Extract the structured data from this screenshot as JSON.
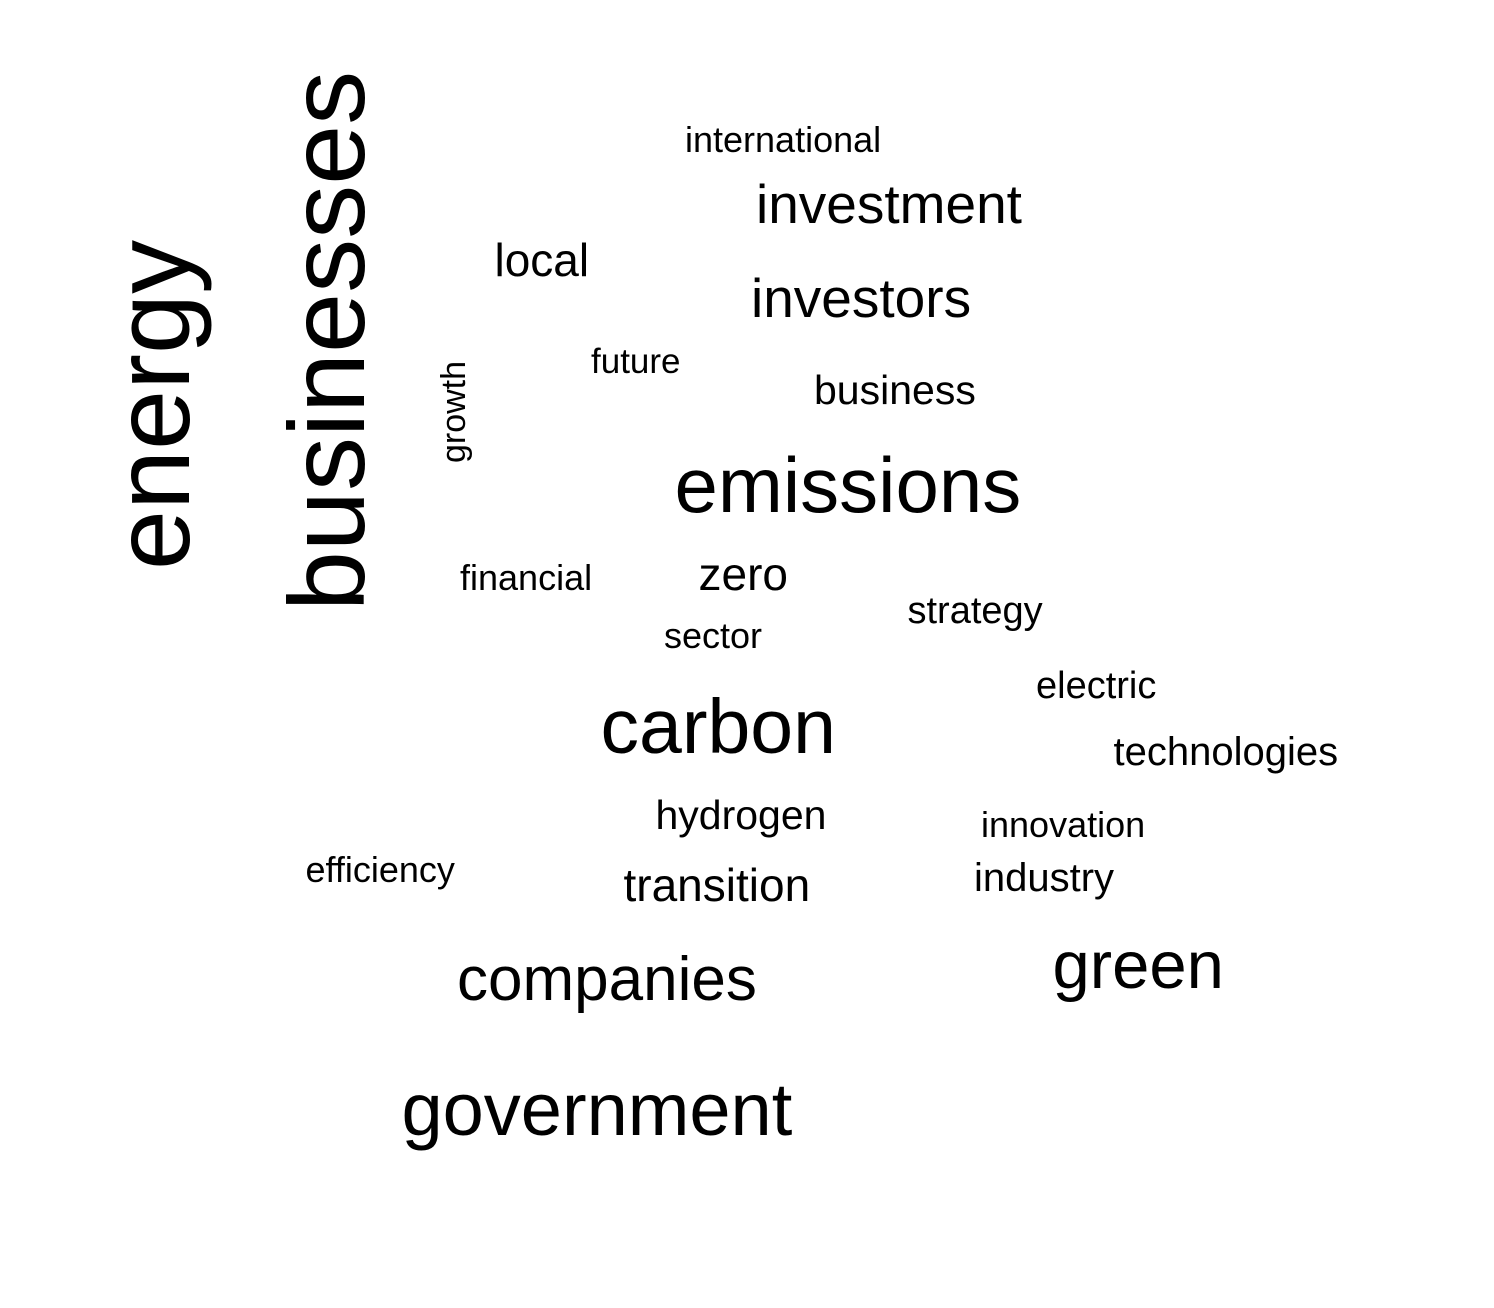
{
  "words": [
    {
      "text": "energy",
      "rotated": true
    },
    {
      "text": "businesses",
      "rotated": true
    },
    {
      "text": "international",
      "rotated": false
    },
    {
      "text": "investment",
      "rotated": false
    },
    {
      "text": "local",
      "rotated": false
    },
    {
      "text": "investors",
      "rotated": false
    },
    {
      "text": "future",
      "rotated": false
    },
    {
      "text": "growth",
      "rotated": true
    },
    {
      "text": "business",
      "rotated": false
    },
    {
      "text": "emissions",
      "rotated": false
    },
    {
      "text": "financial",
      "rotated": false
    },
    {
      "text": "zero",
      "rotated": false
    },
    {
      "text": "strategy",
      "rotated": false
    },
    {
      "text": "sector",
      "rotated": false
    },
    {
      "text": "electric",
      "rotated": false
    },
    {
      "text": "carbon",
      "rotated": false
    },
    {
      "text": "technologies",
      "rotated": false
    },
    {
      "text": "hydrogen",
      "rotated": false
    },
    {
      "text": "innovation",
      "rotated": false
    },
    {
      "text": "efficiency",
      "rotated": false
    },
    {
      "text": "transition",
      "rotated": false
    },
    {
      "text": "industry",
      "rotated": false
    },
    {
      "text": "green",
      "rotated": false
    },
    {
      "text": "companies",
      "rotated": false
    },
    {
      "text": "government",
      "rotated": false
    }
  ]
}
